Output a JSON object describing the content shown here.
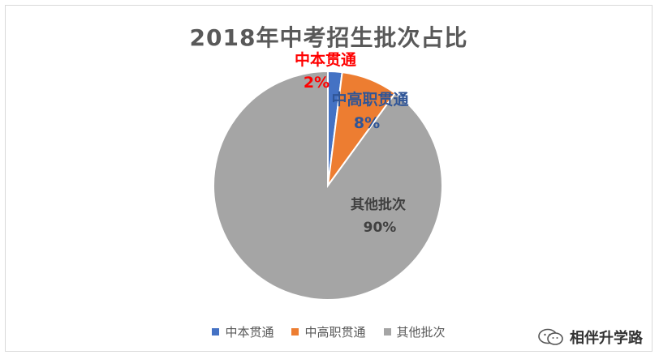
{
  "chart_data": {
    "type": "pie",
    "title": "2018年中考招生批次占比",
    "categories": [
      "中本贯通",
      "中高职贯通",
      "其他批次"
    ],
    "values": [
      2,
      8,
      90
    ],
    "value_labels": [
      "2%",
      "8%",
      "90%"
    ],
    "colors": [
      "#4472c4",
      "#ed7d31",
      "#a5a5a5"
    ],
    "label_colors": [
      "#ff0000",
      "#2f5597",
      "#404040"
    ],
    "legend_position": "bottom"
  },
  "watermark": {
    "text": "相伴升学路",
    "icon": "wechat-icon"
  }
}
